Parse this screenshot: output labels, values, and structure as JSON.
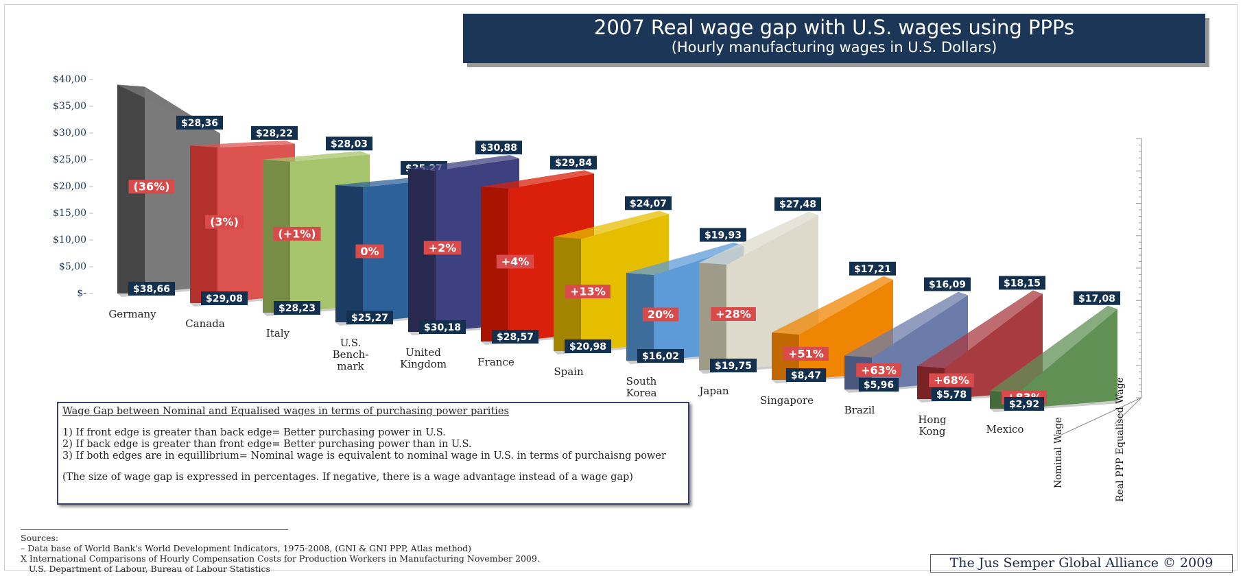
{
  "chart_data": {
    "type": "bar3d",
    "title": "2007 Real wage gap with U.S. wages using PPPs",
    "subtitle": "(Hourly manufacturing wages in U.S. Dollars)",
    "categories": [
      "Germany",
      "Canada",
      "Italy",
      "U.S.\nBench-\nmark",
      "United\nKingdom",
      "France",
      "Spain",
      "South\nKorea",
      "Japan",
      "Singapore",
      "Brazil",
      "Hong\nKong",
      "Mexico"
    ],
    "series": [
      {
        "name": "Nominal Wage",
        "values": [
          38.66,
          29.08,
          28.23,
          25.27,
          30.18,
          28.57,
          20.98,
          16.02,
          19.75,
          8.47,
          5.96,
          5.78,
          2.92
        ],
        "value_labels": [
          "$38,66",
          "$29,08",
          "$28,23",
          "$25,27",
          "$30,18",
          "$28,57",
          "$20,98",
          "$16,02",
          "$19,75",
          "$8,47",
          "$5,96",
          "$5,78",
          "$2,92"
        ]
      },
      {
        "name": "Real PPP Equalised Wage",
        "values": [
          28.36,
          28.22,
          28.03,
          25.27,
          30.88,
          29.84,
          24.07,
          19.93,
          27.48,
          17.21,
          16.09,
          18.15,
          17.08
        ],
        "value_labels": [
          "$28,36",
          "$28,22",
          "$28,03",
          "$25,27",
          "$30,88",
          "$29,84",
          "$24,07",
          "$19,93",
          "$27,48",
          "$17,21",
          "$16,09",
          "$18,15",
          "$17,08"
        ]
      }
    ],
    "gap_labels": [
      "(36%)",
      "(3%)",
      "(+1%)",
      "0%",
      "+2%",
      "+4%",
      "+13%",
      "20%",
      "+28%",
      "+51%",
      "+63%",
      "+68%",
      "+83%"
    ],
    "colors": [
      "#454545",
      "#b3302d",
      "#778c44",
      "#1c3d63",
      "#28294f",
      "#a91400",
      "#a38400",
      "#3e6d9c",
      "#9e9b88",
      "#c26800",
      "#4a5880",
      "#7a2327",
      "#436a3b"
    ],
    "side_colors": [
      "#7a7a7a",
      "#dc5350",
      "#a5c46b",
      "#2d6199",
      "#3e4180",
      "#da1f0a",
      "#e6be00",
      "#5c9bd8",
      "#dedacb",
      "#ef8500",
      "#6c7caa",
      "#a83b40",
      "#609054"
    ],
    "ylim": [
      0,
      40
    ],
    "yticks": [
      {
        "value": 0,
        "label": "$-"
      },
      {
        "value": 5,
        "label": "$5,00"
      },
      {
        "value": 10,
        "label": "$10,00"
      },
      {
        "value": 15,
        "label": "$15,00"
      },
      {
        "value": 20,
        "label": "$20,00"
      },
      {
        "value": 25,
        "label": "$25,00"
      },
      {
        "value": 30,
        "label": "$30,00"
      },
      {
        "value": 35,
        "label": "$35,00"
      },
      {
        "value": 40,
        "label": "$40,00"
      }
    ],
    "notes": {
      "heading": "Wage Gap between Nominal and Equalised wages in terms of purchasing power parities",
      "lines": [
        "1) If front edge is greater than back edge= Better purchasing power in U.S.",
        "2) If back edge is greater than front edge= Better purchasing power than in U.S.",
        "3) If both edges are in equillibrium=  Nominal wage is equivalent to nominal wage in U.S. in terms of purchaisng power",
        "(The size of wage gap is expressed in percentages.  If negative, there is a wage advantage instead of a wage gap)"
      ]
    },
    "sources": [
      "Sources:",
      "– Data base of World Bank's World Development Indicators, 1975-2008, (GNI & GNI PPP, Atlas method)",
      "X International Comparisons of Hourly Compensation Costs for Production Workers in Manufacturing November 2009.",
      "   U.S. Department of Labour, Bureau of Labour Statistics"
    ],
    "credit": "The Jus Semper Global Alliance © 2009"
  }
}
